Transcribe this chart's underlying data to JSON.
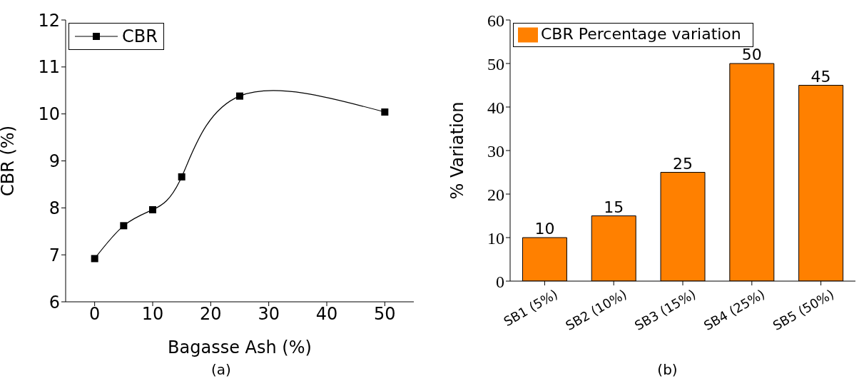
{
  "chart_data": [
    {
      "type": "line",
      "xlabel": "Bagasse Ash (%)",
      "ylabel": "CBR (%)",
      "x": [
        0,
        5,
        10,
        15,
        25,
        50
      ],
      "series": [
        {
          "name": "CBR",
          "color": "#000000",
          "values": [
            6.92,
            7.62,
            7.96,
            8.66,
            10.38,
            10.04
          ]
        }
      ],
      "xlim": [
        -5,
        55
      ],
      "ylim": [
        6,
        12
      ],
      "xticks": [
        0,
        10,
        20,
        30,
        40,
        50
      ],
      "yticks": [
        6,
        7,
        8,
        9,
        10,
        11,
        12
      ],
      "marker": "square",
      "line_style": "solid",
      "legend": "top left",
      "annotations": [
        "(a)"
      ]
    },
    {
      "type": "bar",
      "ylabel": "% Variation",
      "categories": [
        "SB1 (5%)",
        "SB2 (10%)",
        "SB3 (15%)",
        "SB4 (25%)",
        "SB5 (50%)"
      ],
      "series": [
        {
          "name": "CBR Percentage variation",
          "color": "#ff8000",
          "values": [
            10,
            15,
            25,
            50,
            45
          ]
        }
      ],
      "ylim": [
        0,
        60
      ],
      "yticks": [
        0,
        10,
        20,
        30,
        40,
        50,
        60
      ],
      "data_labels": true,
      "legend": "top left",
      "annotations": [
        "(b)"
      ]
    }
  ]
}
